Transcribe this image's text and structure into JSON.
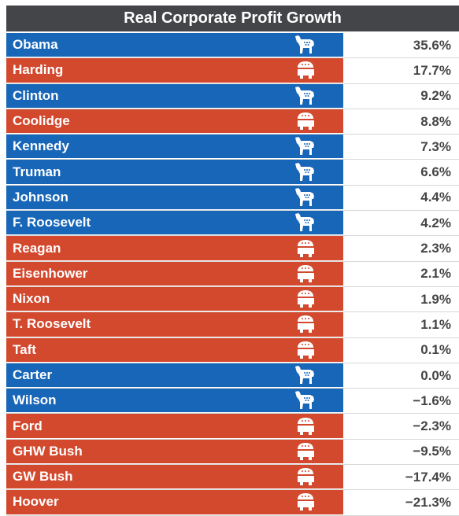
{
  "chart_data": {
    "type": "table",
    "title": "Real Corporate Profit Growth",
    "rows": [
      {
        "name": "Obama",
        "party": "democrat",
        "value": "35.6%"
      },
      {
        "name": "Harding",
        "party": "republican",
        "value": "17.7%"
      },
      {
        "name": "Clinton",
        "party": "democrat",
        "value": "9.2%"
      },
      {
        "name": "Coolidge",
        "party": "republican",
        "value": "8.8%"
      },
      {
        "name": "Kennedy",
        "party": "democrat",
        "value": "7.3%"
      },
      {
        "name": "Truman",
        "party": "democrat",
        "value": "6.6%"
      },
      {
        "name": "Johnson",
        "party": "democrat",
        "value": "4.4%"
      },
      {
        "name": "F. Roosevelt",
        "party": "democrat",
        "value": "4.2%"
      },
      {
        "name": "Reagan",
        "party": "republican",
        "value": "2.3%"
      },
      {
        "name": "Eisenhower",
        "party": "republican",
        "value": "2.1%"
      },
      {
        "name": "Nixon",
        "party": "republican",
        "value": "1.9%"
      },
      {
        "name": "T. Roosevelt",
        "party": "republican",
        "value": "1.1%"
      },
      {
        "name": "Taft",
        "party": "republican",
        "value": "0.1%"
      },
      {
        "name": "Carter",
        "party": "democrat",
        "value": "0.0%"
      },
      {
        "name": "Wilson",
        "party": "democrat",
        "value": "−1.6%"
      },
      {
        "name": "Ford",
        "party": "republican",
        "value": "−2.3%"
      },
      {
        "name": "GHW Bush",
        "party": "republican",
        "value": "−9.5%"
      },
      {
        "name": "GW Bush",
        "party": "republican",
        "value": "−17.4%"
      },
      {
        "name": "Hoover",
        "party": "republican",
        "value": "−21.3%"
      }
    ]
  },
  "colors": {
    "democrat": "#1766b8",
    "republican": "#d2492e",
    "header": "#444549"
  },
  "icons": {
    "democrat": "donkey-icon",
    "republican": "elephant-icon"
  }
}
